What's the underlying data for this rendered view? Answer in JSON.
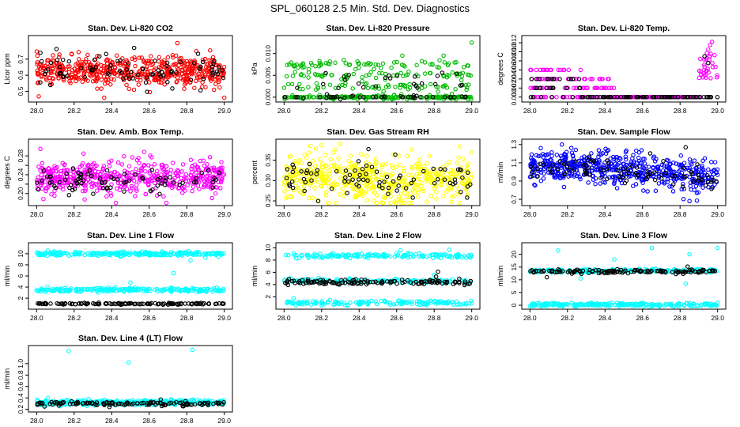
{
  "page_title": "SPL_060128  2.5 Min. Std. Dev. Diagnostics",
  "chart_data": [
    {
      "type": "scatter",
      "title": "Stan. Dev. Li-820 CO2",
      "ylabel": "Licor ppm",
      "xlim": [
        28.0,
        29.0
      ],
      "ylim": [
        0.45,
        0.83
      ],
      "x_ticks": [
        "28.0",
        "28.2",
        "28.4",
        "28.6",
        "28.8",
        "29.0"
      ],
      "y_ticks": [
        0.5,
        0.6,
        0.7
      ],
      "y_tick_labels": [
        "0.5",
        "0.6",
        "0.7"
      ],
      "colors": [
        "#ff0000",
        "#000000"
      ],
      "series": [
        {
          "color": "#ff0000",
          "center": 0.625,
          "spread": 0.045,
          "n": 520,
          "x": [
            28.75,
            29.0,
            28.36
          ],
          "values": [
            0.8,
            0.46,
            0.46
          ]
        },
        {
          "color": "#000000",
          "center": 0.625,
          "spread": 0.045,
          "n": 85,
          "x": [
            28.52,
            28.02
          ],
          "values": [
            0.77,
            0.74
          ]
        }
      ]
    },
    {
      "type": "scatter",
      "title": "Stan. Dev. Li-820 Pressure",
      "ylabel": "kPa",
      "xlim": [
        28.0,
        29.0
      ],
      "ylim": [
        -0.0005,
        0.0135
      ],
      "x_ticks": [
        "28.0",
        "28.2",
        "28.4",
        "28.6",
        "28.8",
        "29.0"
      ],
      "y_ticks": [
        0.0,
        0.005,
        0.01
      ],
      "y_tick_labels": [
        "0.000",
        "0.005",
        "0.010"
      ],
      "colors": [
        "#00bb00",
        "#000000"
      ],
      "series": [
        {
          "color": "#00bb00",
          "levels": [
            0.0,
            0.0025,
            0.005,
            0.0075
          ],
          "n": 420,
          "x": [
            29.0,
            28.85,
            28.63
          ],
          "values": [
            0.0125,
            0.0095,
            0.0095
          ]
        },
        {
          "color": "#000000",
          "levels": [
            0.0,
            0.0025,
            0.005
          ],
          "n": 70,
          "x": [],
          "values": []
        }
      ]
    },
    {
      "type": "scatter",
      "title": "Stan. Dev. Li-820 Temp.",
      "ylabel": "degrees C",
      "xlim": [
        28.0,
        29.0
      ],
      "ylim": [
        -0.0005,
        0.013
      ],
      "x_ticks": [
        "28.0",
        "28.2",
        "28.4",
        "28.6",
        "28.8",
        "29.0"
      ],
      "y_ticks": [
        0.0,
        0.002,
        0.004,
        0.006,
        0.008,
        0.01,
        0.012
      ],
      "y_tick_labels": [
        "0.000",
        "0.002",
        "0.004",
        "0.006",
        "0.008",
        "0.010",
        "0.012"
      ],
      "colors": [
        "#ff00ff",
        "#000000"
      ],
      "series": [
        {
          "color": "#ff00ff",
          "pattern": "temp",
          "n": 300,
          "x": [
            28.97,
            28.96,
            28.95
          ],
          "values": [
            0.0122,
            0.0115,
            0.0105
          ]
        },
        {
          "color": "#000000",
          "pattern": "temp_black",
          "n": 120,
          "x": [
            28.93,
            28.95
          ],
          "values": [
            0.009,
            0.0075
          ]
        }
      ]
    },
    {
      "type": "scatter",
      "title": "Stan. Dev. Amb. Box Temp.",
      "ylabel": "degrees C",
      "xlim": [
        28.0,
        29.0
      ],
      "ylim": [
        0.18,
        0.31
      ],
      "x_ticks": [
        "28.0",
        "28.2",
        "28.4",
        "28.6",
        "28.8",
        "29.0"
      ],
      "y_ticks": [
        0.2,
        0.22,
        0.24,
        0.26,
        0.28
      ],
      "y_tick_labels": [
        "0.20",
        "",
        "0.24",
        "",
        "0.28"
      ],
      "colors": [
        "#ff00ff",
        "#000000"
      ],
      "series": [
        {
          "color": "#ff00ff",
          "center": 0.232,
          "spread": 0.018,
          "n": 520,
          "x": [
            28.02,
            28.25
          ],
          "values": [
            0.295,
            0.285
          ]
        },
        {
          "color": "#000000",
          "center": 0.228,
          "spread": 0.012,
          "n": 80,
          "x": [],
          "values": []
        }
      ]
    },
    {
      "type": "scatter",
      "title": "Stan. Dev. Gas Stream RH",
      "ylabel": "percent",
      "xlim": [
        28.0,
        29.0
      ],
      "ylim": [
        0.245,
        0.395
      ],
      "x_ticks": [
        "28.0",
        "28.2",
        "28.4",
        "28.6",
        "28.8",
        "29.0"
      ],
      "y_ticks": [
        0.25,
        0.3,
        0.35
      ],
      "y_tick_labels": [
        "0.25",
        "0.30",
        "0.35"
      ],
      "colors": [
        "#ffff00",
        "#000000"
      ],
      "series": [
        {
          "color": "#ffff00",
          "center": 0.31,
          "spread": 0.028,
          "n": 520,
          "x": [
            28.3,
            28.14
          ],
          "values": [
            0.39,
            0.385
          ]
        },
        {
          "color": "#000000",
          "center": 0.305,
          "spread": 0.022,
          "n": 80,
          "x": [
            28.45
          ],
          "values": [
            0.377
          ]
        }
      ]
    },
    {
      "type": "scatter",
      "title": "Stan. Dev. Sample Flow",
      "ylabel": "ml/min",
      "xlim": [
        28.0,
        29.0
      ],
      "ylim": [
        0.66,
        1.33
      ],
      "x_ticks": [
        "28.0",
        "28.2",
        "28.4",
        "28.6",
        "28.8",
        "29.0"
      ],
      "y_ticks": [
        0.7,
        0.9,
        1.1,
        1.3
      ],
      "y_tick_labels": [
        "0.7",
        "0.9",
        "1.1",
        "1.3"
      ],
      "colors": [
        "#0000ff",
        "#000000"
      ],
      "series": [
        {
          "color": "#0000ff",
          "center": 1.0,
          "spread": 0.09,
          "n": 560,
          "x": [
            28.17,
            28.85
          ],
          "values": [
            1.3,
            0.68
          ]
        },
        {
          "color": "#000000",
          "center": 0.97,
          "spread": 0.06,
          "n": 90,
          "x": [
            28.83
          ],
          "values": [
            1.27
          ]
        }
      ]
    },
    {
      "type": "scatter",
      "title": "Stan. Dev. Line 1 Flow",
      "ylabel": "ml/min",
      "xlim": [
        28.0,
        29.0
      ],
      "ylim": [
        0.5,
        11.5
      ],
      "x_ticks": [
        "28.0",
        "28.2",
        "28.4",
        "28.6",
        "28.8",
        "29.0"
      ],
      "y_ticks": [
        2,
        4,
        6,
        8,
        10
      ],
      "y_tick_labels": [
        "2",
        "4",
        "6",
        "8",
        "10"
      ],
      "colors": [
        "#00ffff",
        "#000000"
      ],
      "series": [
        {
          "color": "#00ffff",
          "bands": [
            10.0,
            3.5
          ],
          "band_spread": 0.18,
          "n": 460,
          "x": [
            28.5,
            28.73,
            28.82,
            28.9
          ],
          "values": [
            4.8,
            6.5,
            8.8,
            9.3
          ]
        },
        {
          "color": "#000000",
          "bands": [
            1.0
          ],
          "band_spread": 0.07,
          "n": 130,
          "x": [],
          "values": []
        }
      ]
    },
    {
      "type": "scatter",
      "title": "Stan. Dev. Line 2 Flow",
      "ylabel": "ml/min",
      "xlim": [
        28.0,
        29.0
      ],
      "ylim": [
        0.4,
        10.4
      ],
      "x_ticks": [
        "28.0",
        "28.2",
        "28.4",
        "28.6",
        "28.8",
        "29.0"
      ],
      "y_ticks": [
        2,
        4,
        6,
        8,
        10
      ],
      "y_tick_labels": [
        "2",
        "4",
        "6",
        "8",
        "10"
      ],
      "colors": [
        "#00ffff",
        "#000000"
      ],
      "series": [
        {
          "color": "#00ffff",
          "bands": [
            8.7,
            4.6,
            1.0
          ],
          "band_spread": 0.18,
          "n": 460,
          "x": [
            28.62,
            28.72,
            28.8,
            28.88
          ],
          "values": [
            9.6,
            9.1,
            5.6,
            9.7
          ]
        },
        {
          "color": "#000000",
          "bands": [
            4.4
          ],
          "band_spread": 0.22,
          "n": 130,
          "x": [
            28.82,
            28.81
          ],
          "values": [
            6.1,
            5.3
          ]
        }
      ]
    },
    {
      "type": "scatter",
      "title": "Stan. Dev. Line 3 Flow",
      "ylabel": "ml/min",
      "xlim": [
        28.0,
        29.0
      ],
      "ylim": [
        -0.5,
        23.5
      ],
      "x_ticks": [
        "28.0",
        "28.2",
        "28.4",
        "28.6",
        "28.8",
        "29.0"
      ],
      "y_ticks": [
        0,
        5,
        10,
        15,
        20
      ],
      "y_tick_labels": [
        "0",
        "5",
        "10",
        "15",
        "20"
      ],
      "colors": [
        "#00ffff",
        "#000000"
      ],
      "series": [
        {
          "color": "#00ffff",
          "bands": [
            13.5,
            0.2
          ],
          "band_spread": 0.35,
          "n": 440,
          "x": [
            28.15,
            28.45,
            28.65,
            28.85,
            29.0,
            28.27,
            28.83
          ],
          "values": [
            21.5,
            18.0,
            22.5,
            20.0,
            22.5,
            10.5,
            8.5
          ]
        },
        {
          "color": "#000000",
          "bands": [
            13.3
          ],
          "band_spread": 0.4,
          "n": 130,
          "x": [
            28.84,
            28.09
          ],
          "values": [
            15.2,
            11.0
          ]
        }
      ]
    },
    {
      "type": "scatter",
      "title": "Stan. Dev. Line 4 (LT) Flow",
      "ylabel": "ml/min",
      "xlim": [
        28.0,
        29.0
      ],
      "ylim": [
        0.2,
        1.27
      ],
      "x_ticks": [
        "28.0",
        "28.2",
        "28.4",
        "28.6",
        "28.8",
        "29.0"
      ],
      "y_ticks": [
        0.2,
        0.4,
        0.6,
        0.8,
        1.0
      ],
      "y_tick_labels": [
        "0.2",
        "0.4",
        "0.6",
        "0.8",
        "1.0"
      ],
      "colors": [
        "#00ffff",
        "#000000"
      ],
      "series": [
        {
          "color": "#00ffff",
          "bands": [
            0.32
          ],
          "band_spread": 0.022,
          "n": 380,
          "x": [
            28.17,
            28.49,
            28.83
          ],
          "values": [
            1.22,
            1.02,
            1.24
          ]
        },
        {
          "color": "#000000",
          "bands": [
            0.3
          ],
          "band_spread": 0.02,
          "n": 130,
          "x": [],
          "values": []
        }
      ]
    }
  ]
}
